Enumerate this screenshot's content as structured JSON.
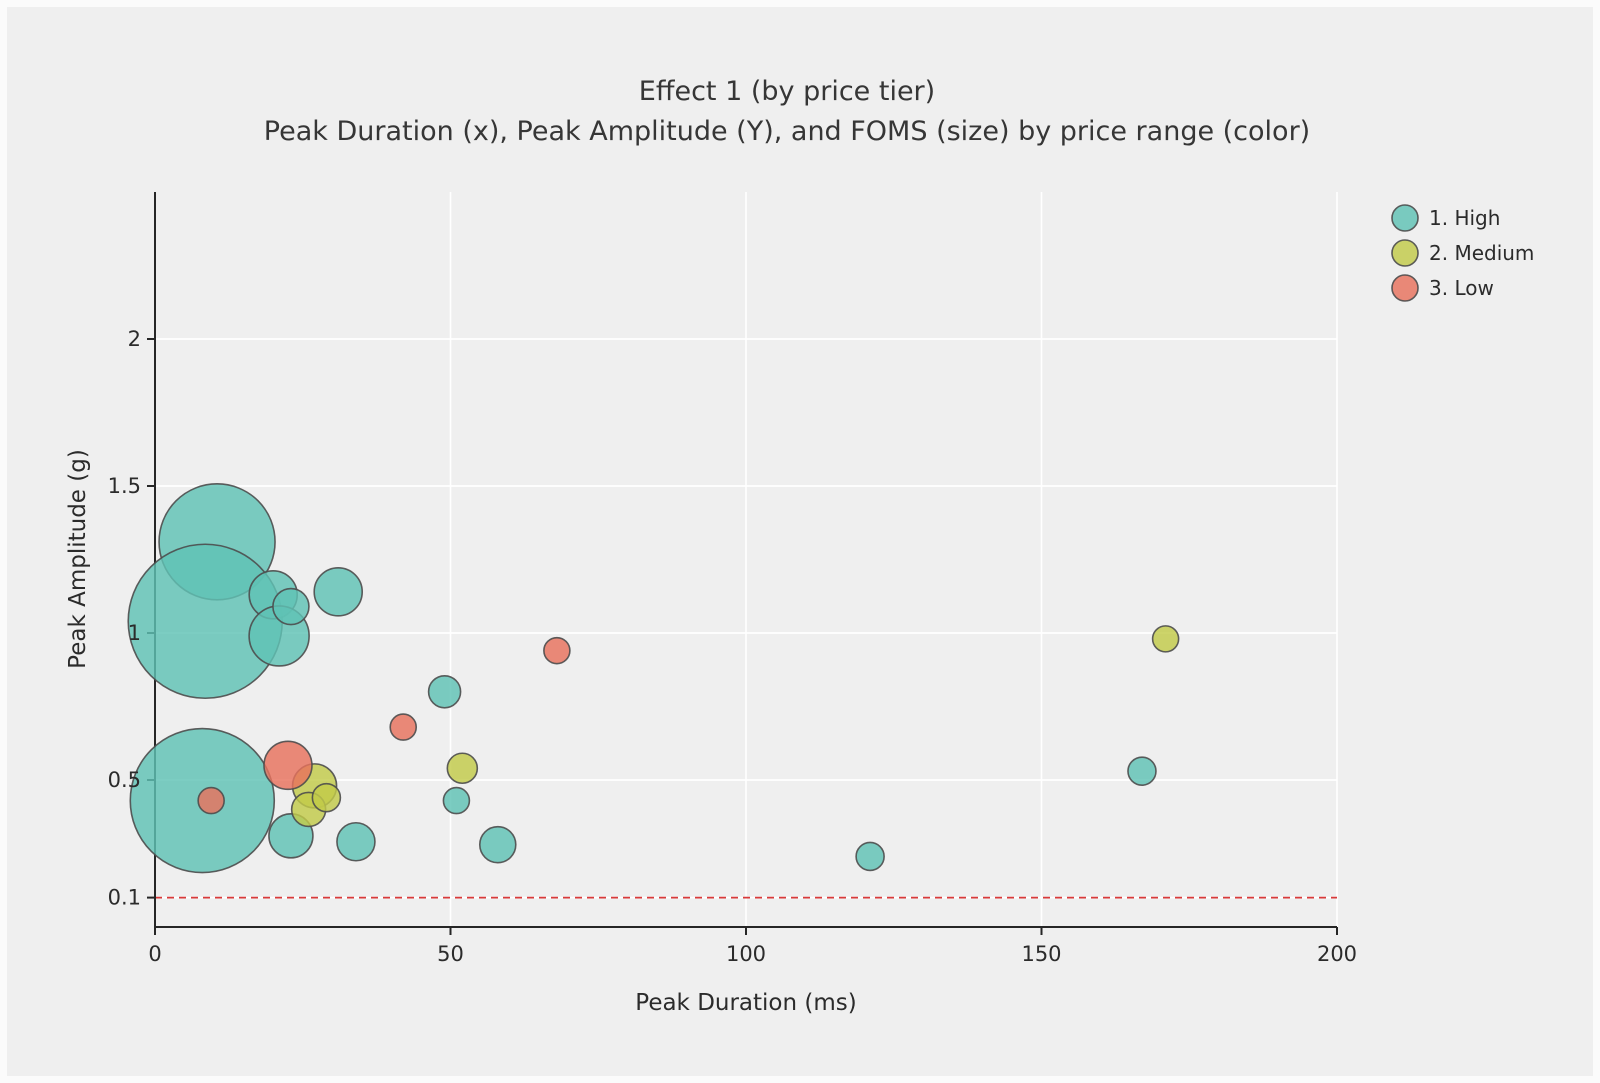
{
  "chart_data": {
    "type": "scatter",
    "title": "Effect 1 (by price tier)",
    "subtitle": "Peak Duration (x), Peak Amplitude (Y), and FOMS (size) by price range (color)",
    "xlabel": "Peak Duration (ms)",
    "ylabel": "Peak Amplitude (g)",
    "xlim": [
      0,
      200
    ],
    "ylim": [
      0,
      2.5
    ],
    "x_ticks": [
      0,
      50,
      100,
      150,
      200
    ],
    "y_ticks": [
      0.1,
      0.5,
      1,
      1.5,
      2
    ],
    "grid": "on",
    "legend_position": "top-right",
    "size_encoding": "FOMS",
    "color_encoding": "price range",
    "background_color": "#efefef",
    "reference_line": {
      "y": 0.1,
      "color": "#d93a3a",
      "style": "dashed"
    },
    "series": [
      {
        "name": "1. High",
        "color": "#5fc2b5",
        "points": [
          {
            "x": 10.5,
            "y": 1.31,
            "size": 58
          },
          {
            "x": 8.5,
            "y": 1.04,
            "size": 77
          },
          {
            "x": 20,
            "y": 1.13,
            "size": 24
          },
          {
            "x": 21,
            "y": 0.99,
            "size": 30
          },
          {
            "x": 23,
            "y": 1.09,
            "size": 18
          },
          {
            "x": 31,
            "y": 1.14,
            "size": 24
          },
          {
            "x": 49,
            "y": 0.8,
            "size": 16
          },
          {
            "x": 51,
            "y": 0.43,
            "size": 13
          },
          {
            "x": 58,
            "y": 0.28,
            "size": 18
          },
          {
            "x": 8,
            "y": 0.43,
            "size": 72
          },
          {
            "x": 23,
            "y": 0.31,
            "size": 22
          },
          {
            "x": 34,
            "y": 0.29,
            "size": 19
          },
          {
            "x": 121,
            "y": 0.24,
            "size": 14
          },
          {
            "x": 167,
            "y": 0.53,
            "size": 14
          }
        ]
      },
      {
        "name": "2. Medium",
        "color": "#c2ca49",
        "points": [
          {
            "x": 27,
            "y": 0.48,
            "size": 22
          },
          {
            "x": 26,
            "y": 0.4,
            "size": 17
          },
          {
            "x": 29,
            "y": 0.44,
            "size": 14
          },
          {
            "x": 52,
            "y": 0.54,
            "size": 15
          },
          {
            "x": 171,
            "y": 0.98,
            "size": 13
          }
        ]
      },
      {
        "name": "3. Low",
        "color": "#e8715d",
        "points": [
          {
            "x": 22.5,
            "y": 0.55,
            "size": 24
          },
          {
            "x": 9.5,
            "y": 0.43,
            "size": 13
          },
          {
            "x": 42,
            "y": 0.68,
            "size": 13
          },
          {
            "x": 68,
            "y": 0.94,
            "size": 13
          }
        ]
      }
    ]
  }
}
